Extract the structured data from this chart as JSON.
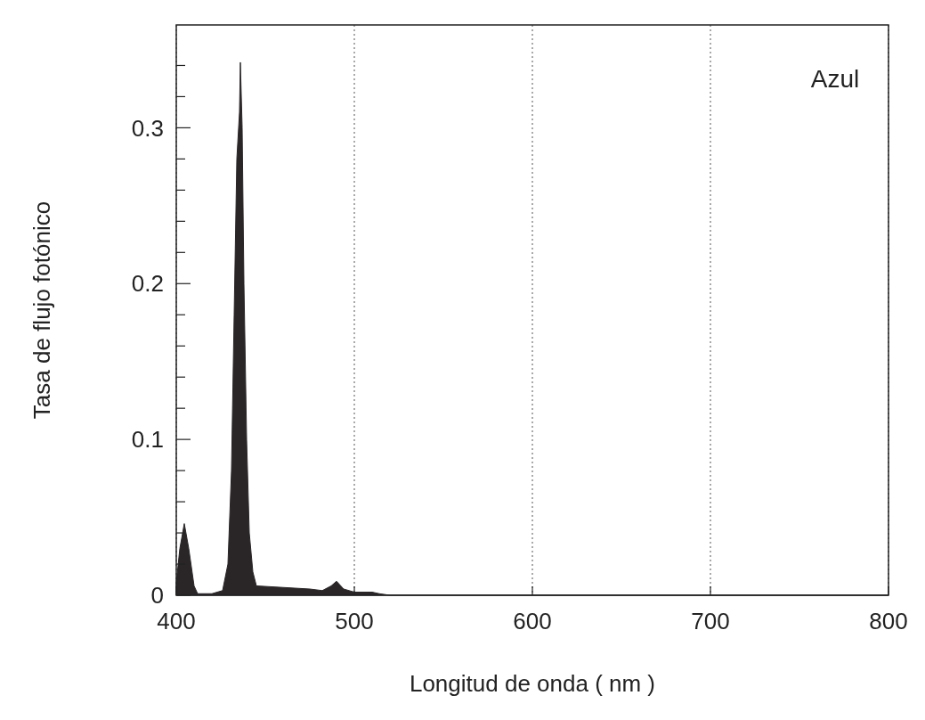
{
  "chart_data": {
    "type": "area",
    "xlabel": "Longitud de onda ( nm )",
    "ylabel": "Tasa de flujo fotónico",
    "annotations": [
      "Azul"
    ],
    "xlim": [
      400,
      800
    ],
    "xticks": [
      400,
      500,
      600,
      700,
      800
    ],
    "ylim": [
      0,
      0.366
    ],
    "yticks": [
      0,
      {
        "value": 0.02,
        "label": null
      },
      {
        "value": 0.04,
        "label": null
      },
      {
        "value": 0.06,
        "label": null
      },
      {
        "value": 0.08,
        "label": null
      },
      0.1,
      {
        "value": 0.12,
        "label": null
      },
      {
        "value": 0.14,
        "label": null
      },
      {
        "value": 0.16,
        "label": null
      },
      {
        "value": 0.18,
        "label": null
      },
      0.2,
      {
        "value": 0.22,
        "label": null
      },
      {
        "value": 0.24,
        "label": null
      },
      {
        "value": 0.26,
        "label": null
      },
      {
        "value": 0.28,
        "label": null
      },
      0.3,
      {
        "value": 0.32,
        "label": null
      },
      {
        "value": 0.34,
        "label": null
      }
    ],
    "grid": "x",
    "x": [
      400,
      402,
      404.5,
      407,
      410,
      412,
      420,
      426,
      429,
      431,
      432.5,
      434,
      435.5,
      436,
      437,
      438,
      439.5,
      441,
      443,
      445,
      460,
      475,
      482,
      487,
      490,
      494,
      500,
      510,
      514,
      520,
      800
    ],
    "series": [
      {
        "color": "#2a2628",
        "values": [
          0.008,
          0.03,
          0.046,
          0.03,
          0.006,
          0.001,
          0.001,
          0.003,
          0.02,
          0.08,
          0.18,
          0.28,
          0.31,
          0.342,
          0.3,
          0.2,
          0.1,
          0.04,
          0.015,
          0.006,
          0.005,
          0.004,
          0.003,
          0.006,
          0.009,
          0.004,
          0.002,
          0.002,
          0.001,
          0,
          0
        ]
      }
    ]
  }
}
